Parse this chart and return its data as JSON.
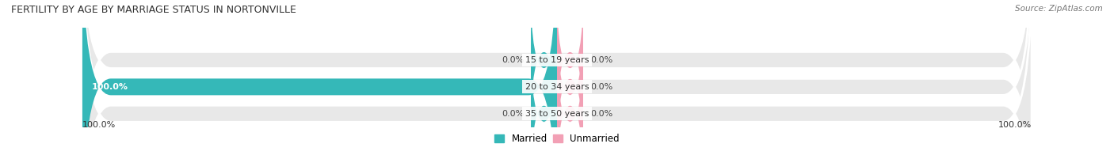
{
  "title": "FERTILITY BY AGE BY MARRIAGE STATUS IN NORTONVILLE",
  "source": "Source: ZipAtlas.com",
  "categories": [
    "15 to 19 years",
    "20 to 34 years",
    "35 to 50 years"
  ],
  "married_pct": [
    0.0,
    100.0,
    0.0
  ],
  "unmarried_pct": [
    0.0,
    0.0,
    0.0
  ],
  "married_label_texts": [
    "0.0%",
    "100.0%",
    "0.0%"
  ],
  "unmarried_label_texts": [
    "0.0%",
    "0.0%",
    "0.0%"
  ],
  "bottom_left_label": "100.0%",
  "bottom_right_label": "100.0%",
  "married_color": "#35b8b8",
  "unmarried_color": "#f2a0b5",
  "bar_bg_color": "#e8e8e8",
  "figsize": [
    14.06,
    1.96
  ],
  "dpi": 100
}
